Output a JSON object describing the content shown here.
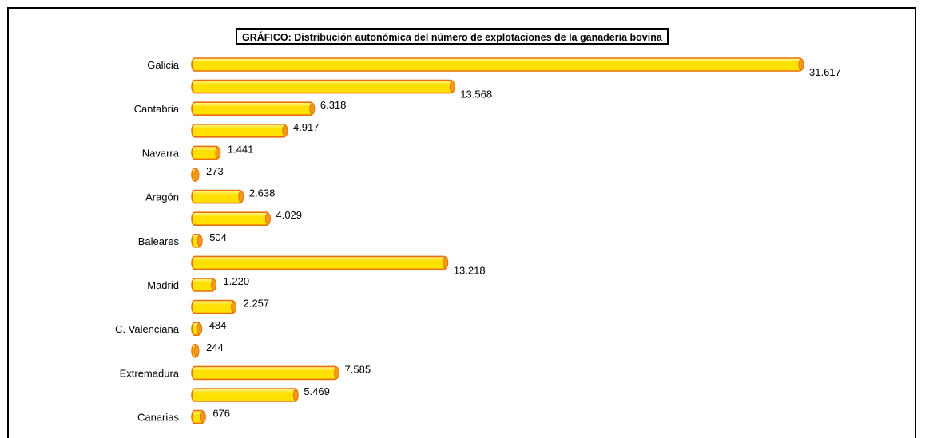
{
  "chart_data": {
    "type": "bar",
    "orientation": "horizontal",
    "title": "GRÁFICO: Distribución autonómica del número de explotaciones de la ganadería bovina",
    "categories": [
      "Galicia",
      "",
      "Cantabria",
      "",
      "Navarra",
      "",
      "Aragón",
      "",
      "Baleares",
      "",
      "Madrid",
      "",
      "C. Valenciana",
      "",
      "Extremadura",
      "",
      "Canarias"
    ],
    "values": [
      31617,
      13568,
      6318,
      4917,
      1441,
      273,
      2638,
      4029,
      504,
      13218,
      1220,
      2257,
      484,
      244,
      7585,
      5469,
      676
    ],
    "value_labels": [
      "31.617",
      "13.568",
      "6.318",
      "4.917",
      "1.441",
      "273",
      "2.638",
      "4.029",
      "504",
      "13.218",
      "1.220",
      "2.257",
      "484",
      "244",
      "7.585",
      "5.469",
      "676"
    ],
    "xlim": [
      0,
      31617
    ],
    "grid": false,
    "legend": "none",
    "colors": {
      "bar_fill": "#FFE000",
      "bar_highlight": "#FFF7A0",
      "bar_outline": "#E8700A",
      "bar_end": "#F29A1A"
    }
  }
}
